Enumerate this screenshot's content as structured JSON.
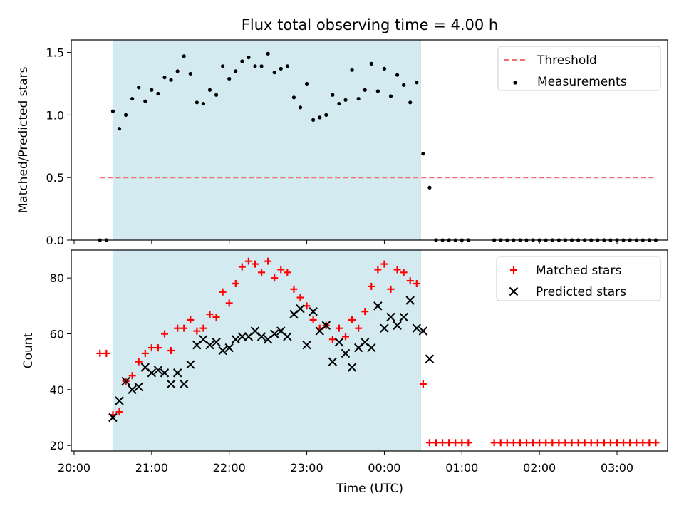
{
  "title": "Flux total observing time = 4.00 h",
  "xlabel": "Time (UTC)",
  "x_tick_labels": [
    "20:00",
    "21:00",
    "22:00",
    "23:00",
    "00:00",
    "01:00",
    "02:00",
    "03:00"
  ],
  "colors": {
    "threshold": "#f07070",
    "matched": "#ff0000",
    "predicted": "#000000",
    "span": "#d3eaf0",
    "measure": "#000000"
  },
  "chart_data": [
    {
      "type": "scatter",
      "ylabel": "Matched/Predicted stars",
      "ylim": [
        0,
        1.6
      ],
      "xlim": [
        "20:00",
        "03:40"
      ],
      "y_ticks": [
        0.0,
        0.5,
        1.0,
        1.5
      ],
      "y_tick_labels": [
        "0.0",
        "0.5",
        "1.0",
        "1.5"
      ],
      "observing_window": [
        "20:30",
        "00:28"
      ],
      "legend": {
        "position": "top-right",
        "entries": [
          "Threshold",
          "Measurements"
        ]
      },
      "threshold": {
        "name": "Threshold",
        "value": 0.5,
        "x_range": [
          "20:20",
          "03:30"
        ]
      },
      "series": [
        {
          "name": "Measurements",
          "x": [
            "20:20",
            "20:25",
            "20:30",
            "20:35",
            "20:40",
            "20:45",
            "20:50",
            "20:55",
            "21:00",
            "21:05",
            "21:10",
            "21:15",
            "21:20",
            "21:25",
            "21:30",
            "21:35",
            "21:40",
            "21:45",
            "21:50",
            "21:55",
            "22:00",
            "22:05",
            "22:10",
            "22:15",
            "22:20",
            "22:25",
            "22:30",
            "22:35",
            "22:40",
            "22:45",
            "22:50",
            "22:55",
            "23:00",
            "23:05",
            "23:10",
            "23:15",
            "23:20",
            "23:25",
            "23:30",
            "23:35",
            "23:40",
            "23:45",
            "23:50",
            "23:55",
            "00:00",
            "00:05",
            "00:10",
            "00:15",
            "00:20",
            "00:25",
            "00:30",
            "00:35",
            "00:40",
            "00:45",
            "00:50",
            "00:55",
            "01:00",
            "01:05",
            "01:25",
            "01:30",
            "01:35",
            "01:40",
            "01:45",
            "01:50",
            "01:55",
            "02:00",
            "02:05",
            "02:10",
            "02:15",
            "02:20",
            "02:25",
            "02:30",
            "02:35",
            "02:40",
            "02:45",
            "02:50",
            "02:55",
            "03:00",
            "03:05",
            "03:10",
            "03:15",
            "03:20",
            "03:25",
            "03:30"
          ],
          "y": [
            0,
            0,
            1.03,
            0.89,
            1.0,
            1.13,
            1.22,
            1.11,
            1.2,
            1.17,
            1.3,
            1.28,
            1.35,
            1.47,
            1.33,
            1.1,
            1.09,
            1.2,
            1.16,
            1.39,
            1.29,
            1.35,
            1.43,
            1.46,
            1.39,
            1.39,
            1.49,
            1.34,
            1.37,
            1.39,
            1.14,
            1.06,
            1.25,
            0.96,
            0.98,
            1.0,
            1.16,
            1.09,
            1.12,
            1.36,
            1.13,
            1.2,
            1.41,
            1.19,
            1.37,
            1.15,
            1.32,
            1.24,
            1.1,
            1.26,
            0.69,
            0.42,
            0,
            0,
            0,
            0,
            0,
            0,
            0,
            0,
            0,
            0,
            0,
            0,
            0,
            0,
            0,
            0,
            0,
            0,
            0,
            0,
            0,
            0,
            0,
            0,
            0,
            0,
            0,
            0,
            0,
            0,
            0,
            0
          ]
        }
      ]
    },
    {
      "type": "scatter",
      "ylabel": "Count",
      "ylim": [
        18,
        90
      ],
      "xlim": [
        "20:00",
        "03:40"
      ],
      "y_ticks": [
        20,
        40,
        60,
        80
      ],
      "y_tick_labels": [
        "20",
        "40",
        "60",
        "80"
      ],
      "observing_window": [
        "20:30",
        "00:28"
      ],
      "legend": {
        "position": "top-right",
        "entries": [
          "Matched stars",
          "Predicted stars"
        ]
      },
      "series": [
        {
          "name": "Matched stars",
          "marker": "+",
          "x": [
            "20:20",
            "20:25",
            "20:30",
            "20:35",
            "20:40",
            "20:45",
            "20:50",
            "20:55",
            "21:00",
            "21:05",
            "21:10",
            "21:15",
            "21:20",
            "21:25",
            "21:30",
            "21:35",
            "21:40",
            "21:45",
            "21:50",
            "21:55",
            "22:00",
            "22:05",
            "22:10",
            "22:15",
            "22:20",
            "22:25",
            "22:30",
            "22:35",
            "22:40",
            "22:45",
            "22:50",
            "22:55",
            "23:00",
            "23:05",
            "23:10",
            "23:15",
            "23:20",
            "23:25",
            "23:30",
            "23:35",
            "23:40",
            "23:45",
            "23:50",
            "23:55",
            "00:00",
            "00:05",
            "00:10",
            "00:15",
            "00:20",
            "00:25",
            "00:30",
            "00:35",
            "00:40",
            "00:45",
            "00:50",
            "00:55",
            "01:00",
            "01:05",
            "01:25",
            "01:30",
            "01:35",
            "01:40",
            "01:45",
            "01:50",
            "01:55",
            "02:00",
            "02:05",
            "02:10",
            "02:15",
            "02:20",
            "02:25",
            "02:30",
            "02:35",
            "02:40",
            "02:45",
            "02:50",
            "02:55",
            "03:00",
            "03:05",
            "03:10",
            "03:15",
            "03:20",
            "03:25",
            "03:30"
          ],
          "y": [
            53,
            53,
            31,
            32,
            43,
            45,
            50,
            53,
            55,
            55,
            60,
            54,
            62,
            62,
            65,
            61,
            62,
            67,
            66,
            75,
            71,
            78,
            84,
            86,
            85,
            82,
            86,
            80,
            83,
            82,
            76,
            73,
            70,
            65,
            62,
            63,
            58,
            62,
            59,
            65,
            62,
            68,
            77,
            83,
            85,
            76,
            83,
            82,
            79,
            78,
            42,
            21,
            21,
            21,
            21,
            21,
            21,
            21,
            21,
            21,
            21,
            21,
            21,
            21,
            21,
            21,
            21,
            21,
            21,
            21,
            21,
            21,
            21,
            21,
            21,
            21,
            21,
            21,
            21,
            21,
            21,
            21,
            21,
            21
          ]
        },
        {
          "name": "Predicted stars",
          "marker": "x",
          "x": [
            "20:30",
            "20:35",
            "20:40",
            "20:45",
            "20:50",
            "20:55",
            "21:00",
            "21:05",
            "21:10",
            "21:15",
            "21:20",
            "21:25",
            "21:30",
            "21:35",
            "21:40",
            "21:45",
            "21:50",
            "21:55",
            "22:00",
            "22:05",
            "22:10",
            "22:15",
            "22:20",
            "22:25",
            "22:30",
            "22:35",
            "22:40",
            "22:45",
            "22:50",
            "22:55",
            "23:00",
            "23:05",
            "23:10",
            "23:15",
            "23:20",
            "23:25",
            "23:30",
            "23:35",
            "23:40",
            "23:45",
            "23:50",
            "23:55",
            "00:00",
            "00:05",
            "00:10",
            "00:15",
            "00:20",
            "00:25",
            "00:30",
            "00:35"
          ],
          "y": [
            30,
            36,
            43,
            40,
            41,
            48,
            46,
            47,
            46,
            42,
            46,
            42,
            49,
            56,
            58,
            56,
            57,
            54,
            55,
            58,
            59,
            59,
            61,
            59,
            58,
            60,
            61,
            59,
            67,
            69,
            56,
            68,
            61,
            63,
            50,
            57,
            53,
            48,
            55,
            57,
            55,
            70,
            62,
            66,
            63,
            66,
            72,
            62,
            61,
            51
          ]
        }
      ]
    }
  ]
}
